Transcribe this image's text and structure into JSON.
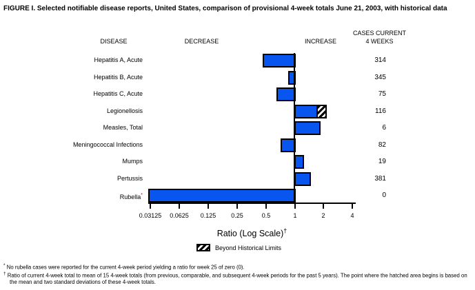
{
  "title": "FIGURE I. Selected notifiable disease reports, United States, comparison of provisional 4-week totals June 21, 2003, with historical data",
  "columns": {
    "disease": "DISEASE",
    "decrease": "DECREASE",
    "increase": "INCREASE",
    "cases_line1": "CASES CURRENT",
    "cases_line2": "4 WEEKS"
  },
  "chart_data": {
    "type": "bar",
    "orientation": "horizontal",
    "scale": "log2",
    "xlim": [
      0.03125,
      4
    ],
    "baseline": 1,
    "tick_labels": [
      "0.03125",
      "0.0625",
      "0.125",
      "0.25",
      "0.5",
      "1",
      "2",
      "4"
    ],
    "xlabel": "Ratio (Log Scale)",
    "xlabel_sup": "†",
    "legend_label": "Beyond Historical Limits",
    "rows": [
      {
        "disease": "Hepatitis A, Acute",
        "ratio": 0.46,
        "cases": 314
      },
      {
        "disease": "Hepatitis B, Acute",
        "ratio": 0.85,
        "cases": 345
      },
      {
        "disease": "Hepatitis C, Acute",
        "ratio": 0.64,
        "cases": 75
      },
      {
        "disease": "Legionellosis",
        "ratio": 2.15,
        "hatched_from": 1.72,
        "cases": 116
      },
      {
        "disease": "Measles, Total",
        "ratio": 1.83,
        "cases": 6
      },
      {
        "disease": "Meningococcal Infections",
        "ratio": 0.71,
        "cases": 82
      },
      {
        "disease": "Mumps",
        "ratio": 1.23,
        "cases": 19
      },
      {
        "disease": "Pertussis",
        "ratio": 1.47,
        "cases": 381
      },
      {
        "disease": "Rubella",
        "sup": "*",
        "ratio": 0,
        "cases": 0
      }
    ]
  },
  "colors": {
    "bar_fill": "#0855f0",
    "bar_border": "#000000",
    "rubella_asterisk": "#cc0000"
  },
  "footnotes": [
    {
      "marker": "*",
      "text": "No rubella cases were reported for the current 4-week period yielding a ratio for week 25 of zero (0)."
    },
    {
      "marker": "†",
      "text": "Ratio of current 4-week total to mean of 15 4-week totals (from previous, comparable, and subsequent 4-week periods for the past 5 years). The point where the hatched area begins is based on the mean and two standard deviations of these 4-week totals."
    }
  ]
}
